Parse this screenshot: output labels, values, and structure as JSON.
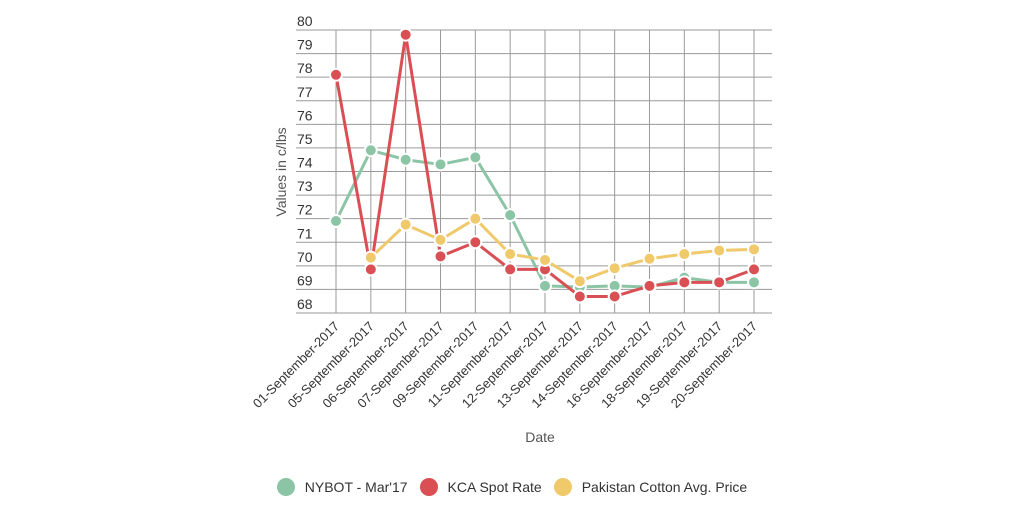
{
  "chart_data": {
    "type": "line",
    "title": "",
    "xlabel": "Date",
    "ylabel": "Values in c/lbs",
    "ylim": [
      68,
      80
    ],
    "yticks": [
      68,
      69,
      70,
      71,
      72,
      73,
      74,
      75,
      76,
      77,
      78,
      79,
      80
    ],
    "grid": true,
    "legend_position": "bottom",
    "categories": [
      "01-September-2017",
      "05-September-2017",
      "06-September-2017",
      "07-September-2017",
      "09-September-2017",
      "11-September-2017",
      "12-September-2017",
      "13-September-2017",
      "14-September-2017",
      "16-September-2017",
      "18-September-2017",
      "19-September-2017",
      "20-September-2017"
    ],
    "series": [
      {
        "name": "NYBOT - Mar'17",
        "color": "#8cc5a5",
        "values": [
          71.9,
          74.9,
          74.5,
          74.3,
          74.6,
          72.15,
          69.15,
          69.1,
          69.15,
          69.1,
          69.5,
          69.3,
          69.3
        ]
      },
      {
        "name": "KCA Spot Rate",
        "color": "#d94f54",
        "values": [
          78.1,
          69.85,
          79.8,
          70.4,
          71.0,
          69.85,
          69.85,
          68.7,
          68.7,
          69.15,
          69.3,
          69.3,
          69.85
        ]
      },
      {
        "name": "Pakistan Cotton Avg. Price",
        "color": "#f0c96a",
        "values": [
          null,
          70.35,
          71.75,
          71.1,
          72.0,
          70.5,
          70.25,
          69.35,
          69.9,
          70.3,
          70.5,
          70.65,
          70.7
        ]
      }
    ]
  }
}
